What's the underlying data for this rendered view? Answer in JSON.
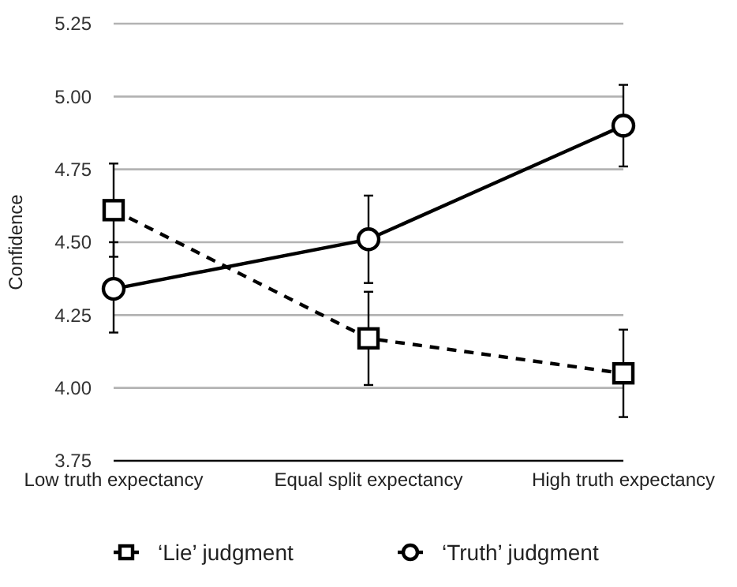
{
  "chart_data": {
    "type": "line",
    "ylabel": "Confidence",
    "categories": [
      "Low truth expectancy",
      "Equal split expectancy",
      "High truth expectancy"
    ],
    "series": [
      {
        "name": "‘Lie’ judgment",
        "color": "#000000",
        "marker": "square",
        "line_style": "dashed",
        "values": [
          4.61,
          4.17,
          4.05
        ],
        "errors": [
          [
            4.45,
            4.77
          ],
          0.16,
          0.15
        ]
      },
      {
        "name": "‘Truth’ judgment",
        "color": "#000000",
        "marker": "circle",
        "line_style": "solid",
        "values": [
          4.34,
          4.51,
          4.9
        ],
        "errors": [
          [
            4.19,
            4.5
          ],
          0.15,
          0.14
        ]
      }
    ],
    "ylim": [
      3.75,
      5.25
    ],
    "yticks": [
      {
        "value": 3.75,
        "label": "3.75"
      },
      {
        "value": 4,
        "label": "4.00"
      },
      {
        "value": 4.25,
        "label": "4.25"
      },
      {
        "value": 4.5,
        "label": "4.50"
      },
      {
        "value": 4.75,
        "label": "4.75"
      },
      {
        "value": 5,
        "label": "5.00"
      },
      {
        "value": 5.25,
        "label": "5.25"
      }
    ],
    "grid": "y",
    "legend": "bottom"
  }
}
